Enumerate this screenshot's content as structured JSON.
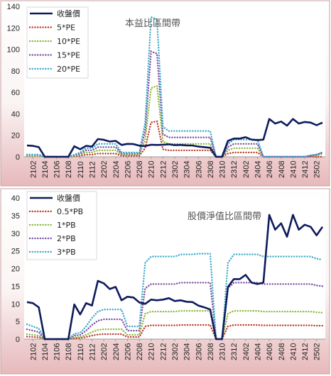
{
  "chart_data": [
    {
      "type": "line",
      "title": "本益比區間帶",
      "ylim": [
        0,
        140
      ],
      "yticks": [
        0,
        20,
        40,
        60,
        80,
        100,
        120,
        140
      ],
      "x_tick_labels": [
        "2102",
        "2104",
        "2106",
        "2108",
        "2110",
        "2112",
        "2202",
        "2204",
        "2206",
        "2208",
        "2210",
        "2212",
        "2302",
        "2304",
        "2306",
        "2308",
        "2310",
        "2312",
        "2402",
        "2404",
        "2406",
        "2408",
        "2410",
        "2412",
        "2502"
      ],
      "x": [
        "2101",
        "2102",
        "2103",
        "2104",
        "2105",
        "2106",
        "2107",
        "2108",
        "2109",
        "2110",
        "2111",
        "2112",
        "2201",
        "2202",
        "2203",
        "2204",
        "2205",
        "2206",
        "2207",
        "2208",
        "2209",
        "2210",
        "2211",
        "2212",
        "2301",
        "2302",
        "2303",
        "2304",
        "2305",
        "2306",
        "2307",
        "2308",
        "2309",
        "2310",
        "2311",
        "2312",
        "2401",
        "2402",
        "2403",
        "2404",
        "2405",
        "2406",
        "2407",
        "2408",
        "2409",
        "2410",
        "2411",
        "2412",
        "2501",
        "2502",
        "2503"
      ],
      "series": [
        {
          "name": "收盤價",
          "color": "#0e1b5c",
          "style": "solid",
          "values": [
            10.5,
            10.2,
            9,
            0,
            0,
            0,
            0,
            0,
            9.8,
            7,
            10.2,
            9.5,
            16.5,
            15.8,
            14.2,
            14.8,
            11,
            12,
            11.8,
            10.4,
            10,
            11.2,
            11,
            11.2,
            11.6,
            10.8,
            11,
            10.6,
            10.5,
            9.5,
            9,
            8.4,
            0,
            0,
            14.8,
            17,
            17,
            18.2,
            16,
            15.6,
            16,
            35.2,
            31,
            32.8,
            29,
            35.2,
            31,
            32.4,
            31.8,
            29.4,
            31.8
          ]
        },
        {
          "name": "5*PE",
          "color": "#c0392b",
          "style": "dot",
          "values": [
            1,
            1,
            1,
            0,
            0,
            0,
            0,
            0,
            0.5,
            1,
            2,
            2,
            3,
            3,
            3,
            3,
            1,
            1,
            1,
            1,
            8,
            32,
            33,
            7,
            6,
            6,
            6,
            6,
            6,
            6,
            6,
            6,
            0,
            0,
            3,
            4,
            4,
            4,
            4,
            4,
            0,
            0,
            0,
            0,
            0,
            0,
            0,
            0,
            0,
            0,
            0
          ]
        },
        {
          "name": "10*PE",
          "color": "#8cb83c",
          "style": "dot",
          "values": [
            1,
            1,
            1,
            0,
            0,
            0,
            0,
            0,
            1,
            2,
            4,
            4,
            6,
            6,
            6,
            6,
            2,
            2,
            2,
            2,
            16,
            64,
            66,
            14,
            12,
            12,
            12,
            12,
            12,
            12,
            12,
            12,
            0,
            0,
            6,
            8,
            8,
            8,
            8,
            8,
            0,
            0,
            0,
            0,
            0,
            0,
            0,
            0,
            1,
            1,
            3
          ]
        },
        {
          "name": "15*PE",
          "color": "#7b4fa3",
          "style": "dot",
          "values": [
            2,
            2,
            2,
            0,
            0,
            0,
            0,
            0,
            1.5,
            3,
            6,
            6,
            9,
            9,
            9,
            9,
            3,
            3,
            3,
            3,
            24,
            98,
            96,
            21,
            18,
            18,
            18,
            18,
            18,
            18,
            18,
            18,
            0,
            0,
            9,
            12,
            12,
            12,
            12,
            12,
            0,
            0,
            0,
            0,
            0,
            0,
            0,
            0,
            1,
            2,
            4
          ]
        },
        {
          "name": "20*PE",
          "color": "#3fa9c9",
          "style": "dot",
          "values": [
            2,
            2,
            2,
            0,
            0,
            0,
            0,
            0,
            2,
            4,
            8,
            8,
            12,
            12,
            12,
            12,
            4,
            4,
            4,
            4,
            32,
            130,
            128,
            28,
            24,
            24,
            24,
            24,
            24,
            24,
            24,
            24,
            0,
            0,
            12,
            16,
            16,
            16,
            16,
            16,
            0,
            0,
            0,
            0,
            0,
            0,
            0,
            0,
            1.5,
            2,
            4
          ]
        }
      ]
    },
    {
      "type": "line",
      "title": "股價淨值比區間帶",
      "ylim": [
        0,
        40
      ],
      "yticks": [
        0,
        5,
        10,
        15,
        20,
        25,
        30,
        35,
        40
      ],
      "x_tick_labels": [
        "2102",
        "2104",
        "2106",
        "2108",
        "2110",
        "2112",
        "2202",
        "2204",
        "2206",
        "2208",
        "2210",
        "2212",
        "2302",
        "2304",
        "2306",
        "2308",
        "2310",
        "2312",
        "2402",
        "2404",
        "2406",
        "2408",
        "2410",
        "2412",
        "2502"
      ],
      "x": [
        "2101",
        "2102",
        "2103",
        "2104",
        "2105",
        "2106",
        "2107",
        "2108",
        "2109",
        "2110",
        "2111",
        "2112",
        "2201",
        "2202",
        "2203",
        "2204",
        "2205",
        "2206",
        "2207",
        "2208",
        "2209",
        "2210",
        "2211",
        "2212",
        "2301",
        "2302",
        "2303",
        "2304",
        "2305",
        "2306",
        "2307",
        "2308",
        "2309",
        "2310",
        "2311",
        "2312",
        "2401",
        "2402",
        "2403",
        "2404",
        "2405",
        "2406",
        "2407",
        "2408",
        "2409",
        "2410",
        "2411",
        "2412",
        "2501",
        "2502",
        "2503"
      ],
      "series": [
        {
          "name": "收盤價",
          "color": "#0e1b5c",
          "style": "solid",
          "values": [
            10.5,
            10.2,
            9,
            0,
            0,
            0,
            0,
            0,
            9.8,
            7,
            10.2,
            9.5,
            16.5,
            15.8,
            14.2,
            14.8,
            11,
            12,
            11.8,
            10.4,
            10,
            11.2,
            11,
            11.2,
            11.6,
            10.8,
            11,
            10.6,
            10.5,
            9.5,
            9,
            8.4,
            0,
            0,
            14.8,
            17,
            17,
            18.2,
            16,
            15.6,
            16,
            35.2,
            31,
            32.8,
            29,
            35.2,
            31,
            32.4,
            31.8,
            29.4,
            31.8
          ]
        },
        {
          "name": "0.5*PB",
          "color": "#c0392b",
          "style": "dot",
          "values": [
            0.7,
            0.6,
            0.5,
            0,
            0,
            0,
            0,
            0,
            0.2,
            0.3,
            0.6,
            1,
            1.3,
            1.4,
            1.4,
            1.4,
            1.4,
            0.6,
            0.6,
            0.6,
            3.6,
            3.9,
            3.9,
            3.9,
            3.9,
            3.9,
            4,
            4,
            4,
            4,
            4,
            4,
            0,
            0,
            3.6,
            4,
            4,
            4,
            4,
            4,
            3.9,
            3.9,
            3.9,
            3.9,
            3.9,
            3.9,
            3.9,
            3.9,
            3.9,
            3.8,
            3.8
          ]
        },
        {
          "name": "1*PB",
          "color": "#8cb83c",
          "style": "dot",
          "values": [
            1.4,
            1.2,
            1,
            0,
            0,
            0,
            0,
            0,
            0.5,
            0.6,
            1.2,
            2,
            2.6,
            2.8,
            2.8,
            2.8,
            2.8,
            1.2,
            1.2,
            1.2,
            7.2,
            7.8,
            7.8,
            7.8,
            7.8,
            7.8,
            8,
            8,
            8,
            8,
            8,
            8,
            0,
            0,
            7.2,
            8,
            8,
            8,
            8,
            8,
            7.8,
            7.8,
            7.8,
            7.8,
            7.8,
            7.8,
            7.8,
            7.8,
            7.8,
            7.6,
            7.5
          ]
        },
        {
          "name": "2*PB",
          "color": "#7b4fa3",
          "style": "dot",
          "values": [
            2.8,
            2.4,
            2,
            0,
            0,
            0,
            0,
            0,
            1,
            1.2,
            2.4,
            4,
            5.2,
            5.6,
            5.6,
            5.6,
            5.6,
            2.4,
            2.4,
            2.4,
            14.4,
            15.6,
            15.6,
            15.6,
            15.6,
            15.6,
            16,
            16,
            16,
            16,
            16,
            16,
            0,
            0,
            14.4,
            16,
            16,
            16,
            16,
            16,
            15.6,
            15.6,
            15.6,
            15.6,
            15.6,
            15.6,
            15.6,
            15.6,
            15.6,
            15.2,
            15
          ]
        },
        {
          "name": "3*PB",
          "color": "#3fa9c9",
          "style": "dot",
          "values": [
            4.2,
            3.6,
            3,
            0,
            0,
            0,
            0,
            0,
            1.5,
            1.8,
            3.6,
            6,
            7.8,
            8.4,
            8.4,
            8.4,
            8.4,
            3.6,
            3.6,
            3.6,
            21.6,
            23.4,
            23.4,
            23.4,
            23.4,
            23.4,
            24,
            24,
            24,
            24.2,
            24.2,
            24.2,
            0,
            0,
            21.6,
            24,
            24,
            24,
            24,
            24,
            23.4,
            23.4,
            23.4,
            23.4,
            23.4,
            23.4,
            23.4,
            23.4,
            23.4,
            22.8,
            22.5
          ]
        }
      ]
    }
  ]
}
